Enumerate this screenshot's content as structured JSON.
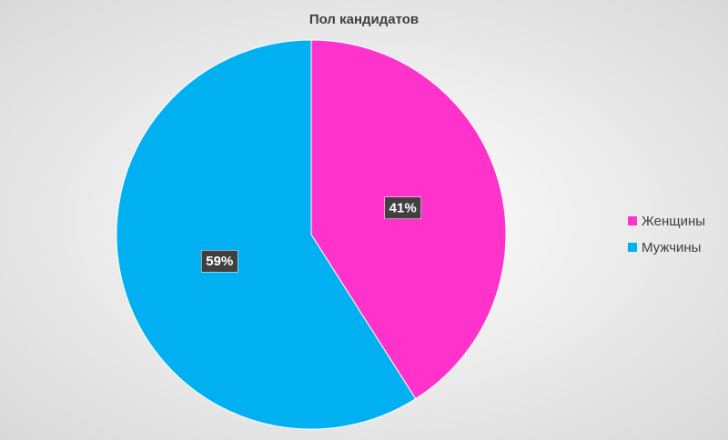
{
  "chart_data": {
    "type": "pie",
    "title": "Пол кандидатов",
    "categories": [
      "Женщины",
      "Мужчины"
    ],
    "values": [
      41,
      59
    ],
    "value_labels": [
      "41%",
      "59%"
    ],
    "colors": [
      "#FF33CC",
      "#00B0F0"
    ],
    "legend": "right"
  }
}
